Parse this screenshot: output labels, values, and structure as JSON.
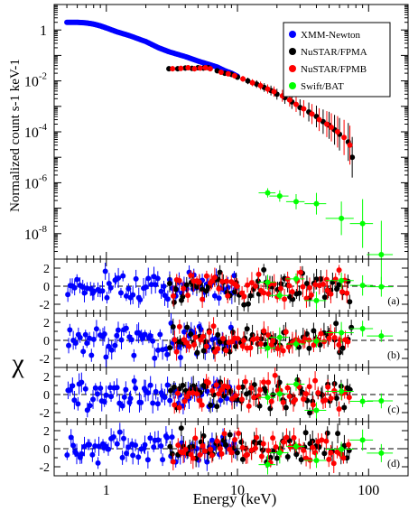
{
  "chart_data": [
    {
      "type": "scatter",
      "xscale": "log",
      "yscale": "log",
      "xlim": [
        0.4,
        200
      ],
      "ylim": [
        1e-09,
        10
      ],
      "ylabel": "Normalized count s-1 keV-1",
      "ytick_labels": [
        {
          "v": 1e-08,
          "mant": "10",
          "exp": "-8"
        },
        {
          "v": 1e-06,
          "mant": "10",
          "exp": "-6"
        },
        {
          "v": 0.0001,
          "mant": "10",
          "exp": "-4"
        },
        {
          "v": 0.01,
          "mant": "10",
          "exp": "-2"
        },
        {
          "v": 1,
          "mant": "1",
          "exp": ""
        }
      ],
      "legend": {
        "placement": "top-right",
        "entries": [
          {
            "label": "XMM-Newton",
            "color": "#0000ff"
          },
          {
            "label": "NuSTAR/FPMA",
            "color": "#000000"
          },
          {
            "label": "NuSTAR/FPMB",
            "color": "#ff0000"
          },
          {
            "label": "Swift/BAT",
            "color": "#00ff00"
          }
        ]
      },
      "series": [
        {
          "name": "XMM-Newton",
          "color": "#0000ff",
          "marker": "line-dense",
          "x": [
            0.5,
            0.6,
            0.7,
            0.8,
            0.9,
            1.0,
            1.2,
            1.5,
            2.0,
            2.5,
            3.0,
            4.0,
            5.0,
            6.0,
            7.0,
            8.0,
            9.0,
            10.0
          ],
          "y": [
            2.0,
            2.0,
            1.9,
            1.7,
            1.45,
            1.2,
            0.85,
            0.6,
            0.35,
            0.2,
            0.14,
            0.09,
            0.06,
            0.045,
            0.035,
            0.025,
            0.02,
            0.015
          ]
        },
        {
          "name": "NuSTAR/FPMA",
          "color": "#000000",
          "marker": "circle",
          "x": [
            3.0,
            3.5,
            4.0,
            4.5,
            5.0,
            5.5,
            6.0,
            7.0,
            8.0,
            9.0,
            10.0,
            12.0,
            14.0,
            16.0,
            18.0,
            20.0,
            23.0,
            26.0,
            30.0,
            35.0,
            40.0,
            45.0,
            50.0,
            55.0,
            60.0,
            70.0,
            75.0
          ],
          "y": [
            0.03,
            0.03,
            0.032,
            0.031,
            0.033,
            0.032,
            0.033,
            0.025,
            0.02,
            0.018,
            0.014,
            0.01,
            0.0075,
            0.0055,
            0.0042,
            0.003,
            0.0022,
            0.0015,
            0.0009,
            0.0006,
            0.0004,
            0.00025,
            0.00018,
            0.00012,
            8e-05,
            4e-05,
            1e-05
          ]
        },
        {
          "name": "NuSTAR/FPMB",
          "color": "#ff0000",
          "marker": "circle",
          "x": [
            3.2,
            3.7,
            4.2,
            4.7,
            5.2,
            5.7,
            6.2,
            7.5,
            8.5,
            9.5,
            11.0,
            13.0,
            15.0,
            17.0,
            19.0,
            22.0,
            25.0,
            28.0,
            32.0,
            37.0,
            42.0,
            48.0,
            52.0,
            58.0,
            65.0,
            72.0
          ],
          "y": [
            0.03,
            0.031,
            0.033,
            0.03,
            0.032,
            0.033,
            0.03,
            0.022,
            0.019,
            0.016,
            0.012,
            0.0085,
            0.0065,
            0.0048,
            0.0038,
            0.0026,
            0.0018,
            0.0012,
            0.0008,
            0.0005,
            0.0003,
            0.0002,
            0.00015,
            0.0001,
            6e-05,
            3e-05
          ]
        },
        {
          "name": "Swift/BAT",
          "color": "#00ff00",
          "marker": "circle",
          "x": [
            17,
            21,
            28,
            40,
            62,
            90,
            125
          ],
          "y": [
            4e-07,
            3e-07,
            1.8e-07,
            1.5e-07,
            4e-08,
            2.5e-08,
            1.5e-09
          ],
          "xerr": [
            2.5,
            3.5,
            4.5,
            7.5,
            15,
            18,
            28
          ]
        }
      ]
    },
    {
      "type": "scatter",
      "xscale": "log",
      "xlim": [
        0.4,
        200
      ],
      "ylim": [
        -3,
        3
      ],
      "yticks": [
        -2,
        0,
        2
      ],
      "ylabel": "χ",
      "xlabel": "Energy (keV)",
      "xtick_labels": [
        {
          "v": 1,
          "t": "1"
        },
        {
          "v": 10,
          "t": "10"
        },
        {
          "v": 100,
          "t": "100"
        }
      ],
      "panels": [
        "(a)",
        "(b)",
        "(c)",
        "(d)"
      ],
      "series_colors": {
        "XMM-Newton": "#0000ff",
        "NuSTAR/FPMA": "#000000",
        "NuSTAR/FPMB": "#ff0000",
        "Swift/BAT": "#00ff00"
      }
    }
  ]
}
